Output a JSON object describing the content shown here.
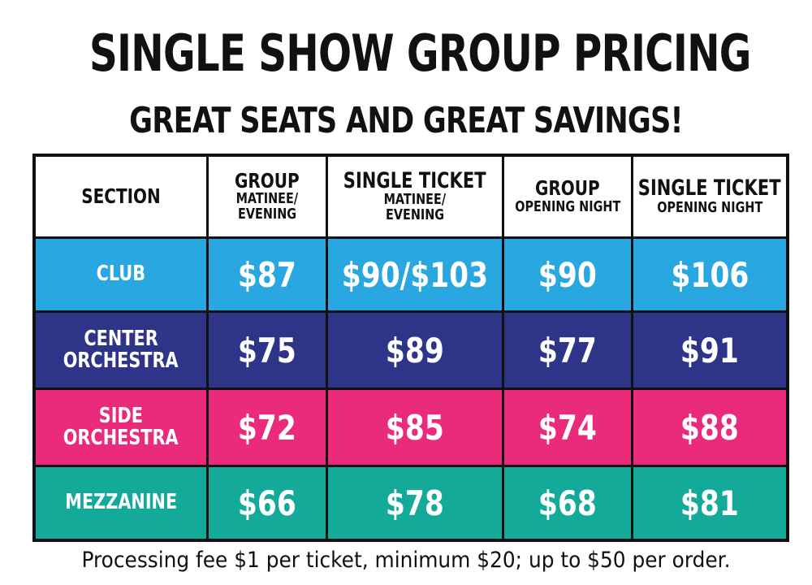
{
  "title": "SINGLE SHOW GROUP PRICING",
  "subtitle": "GREAT SEATS AND GREAT SAVINGS!",
  "table": {
    "headers": [
      {
        "main": "SECTION",
        "sub": ""
      },
      {
        "main": "GROUP",
        "sub_line1": "MATINEE/",
        "sub_line2": "EVENING"
      },
      {
        "main": "SINGLE TICKET",
        "sub_line1": "MATINEE/",
        "sub_line2": "EVENING"
      },
      {
        "main": "GROUP",
        "sub_line1": "OPENING NIGHT"
      },
      {
        "main": "SINGLE TICKET",
        "sub_line1": "OPENING NIGHT"
      }
    ],
    "rows": [
      {
        "section_line1": "CLUB",
        "section_line2": "",
        "color": "#29a7e1",
        "prices": [
          "$87",
          "$90/$103",
          "$90",
          "$106"
        ]
      },
      {
        "section_line1": "CENTER",
        "section_line2": "ORCHESTRA",
        "color": "#2e3589",
        "prices": [
          "$75",
          "$89",
          "$77",
          "$91"
        ]
      },
      {
        "section_line1": "SIDE",
        "section_line2": "ORCHESTRA",
        "color": "#ea2a7b",
        "prices": [
          "$72",
          "$85",
          "$74",
          "$88"
        ]
      },
      {
        "section_line1": "MEZZANINE",
        "section_line2": "",
        "color": "#14aa99",
        "prices": [
          "$66",
          "$78",
          "$68",
          "$81"
        ]
      }
    ]
  },
  "footer": "Processing fee $1 per ticket, minimum $20; up to $50 per order."
}
